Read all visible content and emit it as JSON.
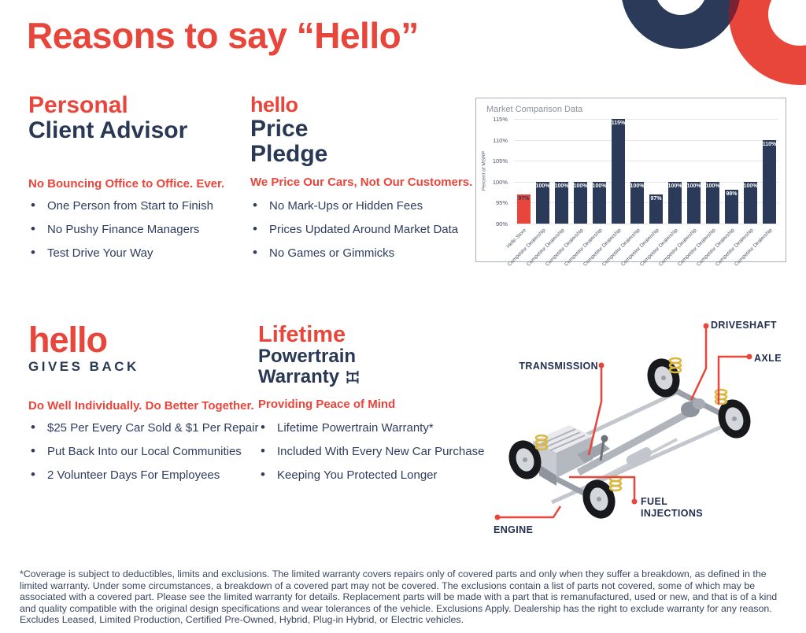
{
  "page_title": "Reasons to say “Hello”",
  "colors": {
    "accent_red": "#e8453b",
    "navy": "#293854",
    "maroon_overlap": "#7a2134"
  },
  "sections": [
    {
      "accent_line": "Personal",
      "line2": "Client Advisor",
      "subheading": "No Bouncing Office to Office. Ever.",
      "bullets": [
        "One Person from Start to Finish",
        "No Pushy Finance Managers",
        "Test Drive Your Way"
      ]
    },
    {
      "accent_line": "hello",
      "line2": "Price",
      "line3": "Pledge",
      "subheading": "We Price Our Cars, Not Our Customers.",
      "bullets": [
        "No Mark-Ups or Hidden Fees",
        "Prices Updated Around Market Data",
        "No Games or Gimmicks"
      ]
    },
    {
      "accent_line": "hello",
      "line2": "GIVES BACK",
      "subheading": "Do Well Individually. Do Better Together.",
      "bullets": [
        "$25 Per Every Car Sold & $1 Per Repair",
        "Put Back Into our Local Communities",
        "2 Volunteer Days For Employees"
      ]
    },
    {
      "accent_line": "Lifetime",
      "line2": "Powertrain",
      "line3": "Warranty",
      "subheading": "Providing Peace of Mind",
      "bullets": [
        "Lifetime Powertrain Warranty*",
        "Included With Every New Car Purchase",
        "Keeping You Protected Longer"
      ]
    }
  ],
  "chart_data": {
    "type": "bar",
    "title": "Market Comparison Data",
    "xlabel": "",
    "ylabel": "Percent of MSRP",
    "ylim": [
      90,
      115
    ],
    "yticks": [
      90,
      95,
      100,
      105,
      110,
      115
    ],
    "grid": true,
    "legend": "none",
    "categories": [
      "Hello Store",
      "Competitor Dealership",
      "Competitor Dealership",
      "Competitor Dealership",
      "Competitor Dealership",
      "Competitor Dealership",
      "Competitor Dealership",
      "Competitor Dealership",
      "Competitor Dealership",
      "Competitor Dealership",
      "Competitor Dealership",
      "Competitor Dealership",
      "Competitor Dealership",
      "Competitor Dealership"
    ],
    "values": [
      97,
      100,
      100,
      100,
      100,
      115,
      100,
      97,
      100,
      100,
      100,
      98,
      100,
      110
    ],
    "value_labels": [
      "97%",
      "100%",
      "100%",
      "100%",
      "100%",
      "115%",
      "100%",
      "97%",
      "100%",
      "100%",
      "100%",
      "98%",
      "100%",
      "110%"
    ],
    "bar_color": "#2b3a59",
    "highlight_index": 0,
    "highlight_color": "#e8453b"
  },
  "diagram": {
    "labels": {
      "driveshaft": "DRIVESHAFT",
      "axle": "AXLE",
      "transmission": "TRANSMISSION",
      "fuel_injections": "FUEL INJECTIONS",
      "engine": "ENGINE"
    }
  },
  "footnote": "*Coverage is subject to deductibles, limits and exclusions. The limited warranty covers repairs only of covered parts and only when they suffer a breakdown, as defined in the limited warranty. Under some circumstances, a breakdown of a covered part may not be covered. The exclusions contain a list of parts not covered, some of which may be associated with a covered part. Please see the limited warranty for details. Replacement parts will be made with a part that is remanufactured, used or new, and that is of a kind and quality compatible with the original design specifications and wear tolerances of the vehicle. Exclusions Apply. Dealership has the right to exclude warranty for any reason. Excludes Leased, Limited Production, Certified Pre-Owned, Hybrid, Plug-in Hybrid, or Electric vehicles."
}
